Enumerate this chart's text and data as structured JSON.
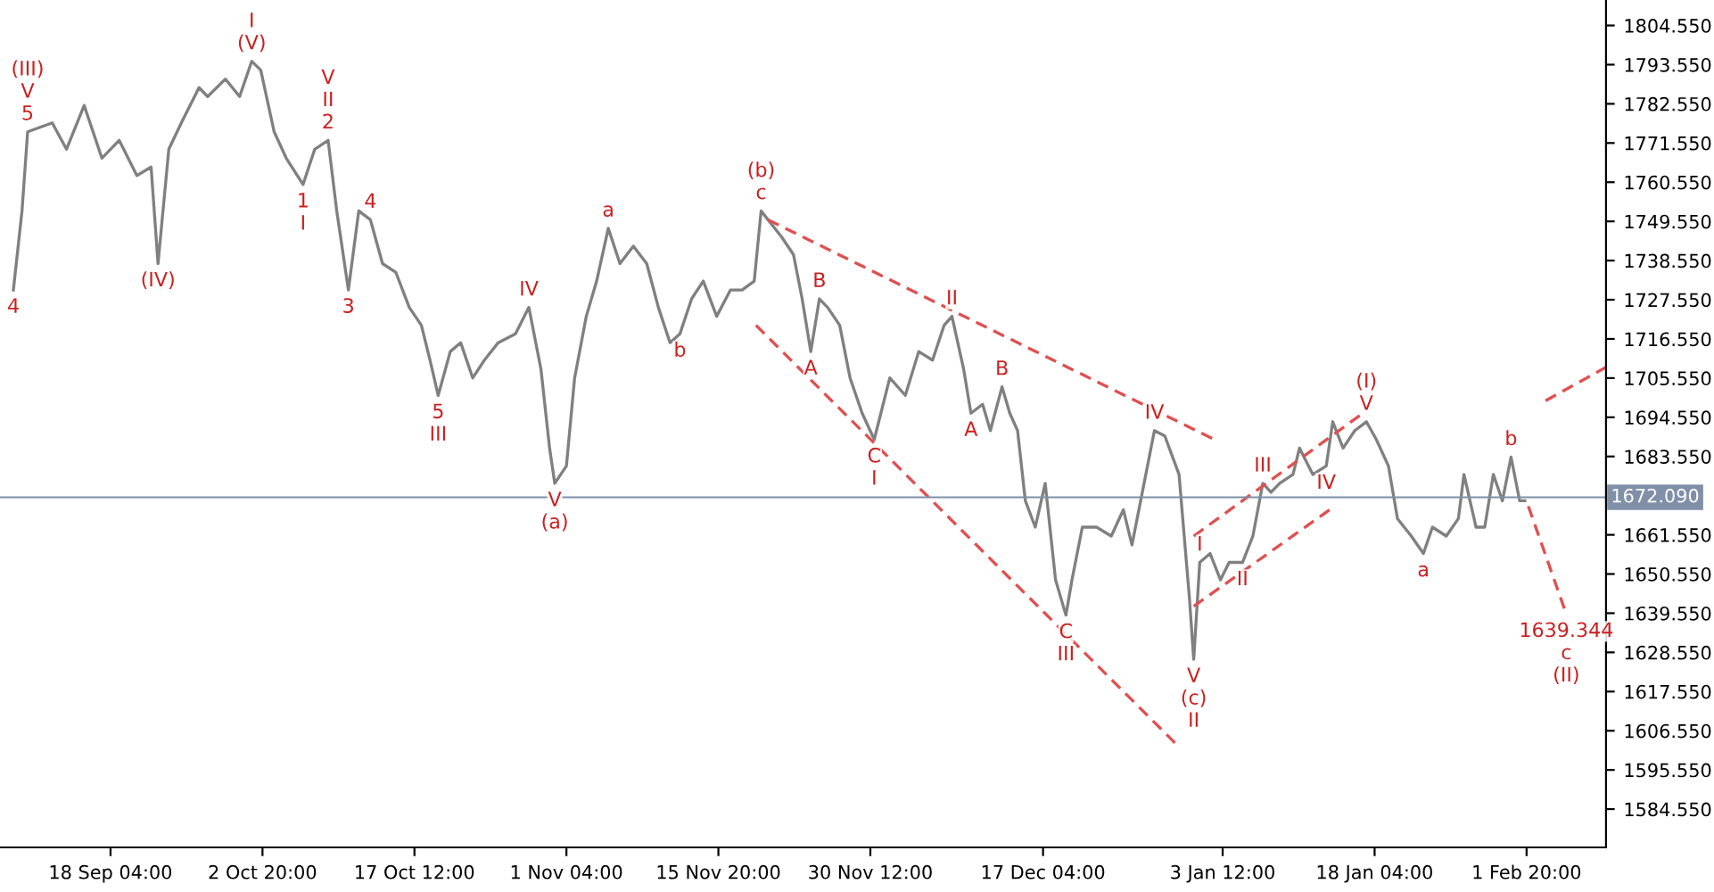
{
  "chart_data": {
    "type": "line",
    "series": [
      {
        "color": "#808080",
        "x": [
          "2019-09-08T19:00",
          "2019-09-09T15:00",
          "2019-09-10T04:00",
          "2019-09-12T13:00",
          "2019-09-13T22:00",
          "2019-09-15T15:00",
          "2019-09-17T08:00",
          "2019-09-19T00:00",
          "2019-09-20T17:00",
          "2019-09-22T02:00",
          "2019-09-22T18:00",
          "2019-09-23T19:00",
          "2019-09-25T00:00",
          "2019-09-26T17:00",
          "2019-09-27T13:00",
          "2019-09-29T06:00",
          "2019-09-30T15:00",
          "2019-10-01T19:00",
          "2019-10-02T16:00",
          "2019-10-03T23:00",
          "2019-10-05T03:00",
          "2019-10-06T18:00",
          "2019-10-07T21:00",
          "2019-10-09T04:00",
          "2019-10-10T00:00",
          "2019-10-11T03:00",
          "2019-10-12T03:00",
          "2019-10-13T06:00",
          "2019-10-14T10:00",
          "2019-10-15T17:00",
          "2019-10-17T00:00",
          "2019-10-18T04:00",
          "2019-10-19T00:00",
          "2019-10-19T19:00",
          "2019-10-20T23:00",
          "2019-10-21T23:00",
          "2019-10-23T03:00",
          "2019-10-24T06:00",
          "2019-10-25T14:00",
          "2019-10-27T06:00",
          "2019-10-28T13:00",
          "2019-10-29T17:00",
          "2019-10-30T13:00",
          "2019-10-31T01:00",
          "2019-11-01T04:00",
          "2019-11-01T23:00",
          "2019-11-03T02:00",
          "2019-11-04T02:00",
          "2019-11-05T05:00",
          "2019-11-06T08:00",
          "2019-11-07T15:00",
          "2019-11-08T22:00",
          "2019-11-10T01:00",
          "2019-11-11T04:00",
          "2019-11-12T03:00",
          "2019-11-13T06:00",
          "2019-11-14T09:00",
          "2019-11-15T16:00",
          "2019-11-17T00:00",
          "2019-11-18T03:00",
          "2019-11-19T07:00",
          "2019-11-19T23:00",
          "2019-11-20T15:00",
          "2019-11-21T23:00",
          "2019-11-23T02:00",
          "2019-11-23T22:00",
          "2019-11-24T18:00",
          "2019-11-25T14:00",
          "2019-11-26T09:00",
          "2019-11-27T13:00",
          "2019-11-28T13:00",
          "2019-11-29T17:00",
          "2019-11-30T21:00",
          "2019-12-02T09:00",
          "2019-12-03T21:00",
          "2019-12-05T04:00",
          "2019-12-06T12:00",
          "2019-12-07T15:00",
          "2019-12-08T09:00",
          "2019-12-09T12:00",
          "2019-12-10T05:00",
          "2019-12-11T08:00",
          "2019-12-12T02:00",
          "2019-12-13T05:00",
          "2019-12-13T23:00",
          "2019-12-14T17:00",
          "2019-12-15T11:00",
          "2019-12-16T10:00",
          "2019-12-17T09:00",
          "2019-12-18T09:00",
          "2019-12-19T09:00",
          "2019-12-19T23:00",
          "2019-12-20T23:00",
          "2019-12-22T08:00",
          "2019-12-23T18:00",
          "2019-12-24T22:00",
          "2019-12-25T18:00",
          "2019-12-26T22:00",
          "2019-12-27T22:00",
          "2019-12-28T22:00",
          "2019-12-30T07:00",
          "2019-12-31T07:00",
          "2019-12-31T17:00",
          "2020-01-01T07:00",
          "2020-01-02T07:00",
          "2020-01-03T07:00",
          "2020-01-04T03:00",
          "2020-01-05T10:00",
          "2020-01-06T10:00",
          "2020-01-07T09:00",
          "2020-01-08T04:00",
          "2020-01-09T00:00",
          "2020-01-10T07:00",
          "2020-01-10T22:00",
          "2020-01-12T05:00",
          "2020-01-13T12:00",
          "2020-01-14T03:00",
          "2020-01-15T03:00",
          "2020-01-16T06:00",
          "2020-01-17T09:00",
          "2020-01-18T08:00",
          "2020-01-19T12:00",
          "2020-01-20T09:00",
          "2020-01-21T17:00",
          "2020-01-22T21:00",
          "2020-01-23T18:00",
          "2020-01-25T02:00",
          "2020-01-26T06:00",
          "2020-01-26T19:00",
          "2020-01-27T23:00",
          "2020-01-28T19:00",
          "2020-01-29T15:00",
          "2020-01-30T12:00",
          "2020-01-31T08:00",
          "2020-02-01T04:00",
          "2020-02-01T16:00"
        ],
        "values": [
          1730.3,
          1752.5,
          1774.7,
          1777.2,
          1769.8,
          1782.1,
          1767.3,
          1772.3,
          1762.4,
          1764.8,
          1737.7,
          1769.8,
          1777.2,
          1787.1,
          1784.6,
          1789.5,
          1784.6,
          1794.5,
          1792.0,
          1774.7,
          1767.3,
          1759.9,
          1769.8,
          1772.3,
          1752.5,
          1730.3,
          1752.5,
          1750.0,
          1737.7,
          1735.2,
          1725.4,
          1720.4,
          1710.6,
          1700.7,
          1713.0,
          1715.5,
          1705.6,
          1710.6,
          1715.5,
          1718.0,
          1725.4,
          1708.1,
          1685.9,
          1676.0,
          1680.9,
          1705.6,
          1722.9,
          1732.8,
          1747.6,
          1737.7,
          1742.6,
          1737.7,
          1725.4,
          1715.5,
          1718.0,
          1727.8,
          1732.8,
          1722.9,
          1730.3,
          1730.3,
          1732.8,
          1752.5,
          1750.0,
          1745.1,
          1740.2,
          1727.8,
          1713.0,
          1727.8,
          1725.4,
          1720.4,
          1705.6,
          1695.7,
          1688.3,
          1705.6,
          1700.7,
          1713.0,
          1710.6,
          1720.4,
          1722.9,
          1708.1,
          1695.7,
          1698.2,
          1690.8,
          1703.1,
          1695.7,
          1690.8,
          1671.1,
          1663.7,
          1676.0,
          1648.9,
          1639.0,
          1648.9,
          1663.7,
          1663.7,
          1661.2,
          1668.6,
          1658.7,
          1676.0,
          1690.8,
          1689.3,
          1678.5,
          1643.9,
          1626.6,
          1653.8,
          1656.3,
          1648.9,
          1653.8,
          1653.8,
          1661.2,
          1676.0,
          1673.5,
          1676.0,
          1678.5,
          1685.9,
          1678.5,
          1680.9,
          1693.3,
          1685.9,
          1690.8,
          1693.3,
          1688.3,
          1680.9,
          1666.1,
          1661.2,
          1656.3,
          1663.7,
          1661.2,
          1666.1,
          1678.5,
          1663.7,
          1663.7,
          1678.5,
          1671.1,
          1683.4,
          1671.1,
          1671.1
        ]
      },
      {
        "color": "#e05050",
        "line_style": "dashed",
        "x": [
          "2019-11-19T11:00",
          "2019-12-30T07:00"
        ],
        "values": [
          1720.4,
          1602.0
        ]
      },
      {
        "color": "#e05050",
        "line_style": "dashed",
        "x": [
          "2019-11-20T15:00",
          "2020-01-02T17:00"
        ],
        "values": [
          1750.0,
          1688.3
        ]
      },
      {
        "color": "#e05050",
        "line_style": "dashed",
        "x": [
          "2019-12-31T17:00",
          "2020-01-17T01:00"
        ],
        "values": [
          1661.2,
          1695.7
        ]
      },
      {
        "color": "#e05050",
        "line_style": "dashed",
        "x": [
          "2019-12-31T17:00",
          "2020-01-13T20:00"
        ],
        "values": [
          1641.5,
          1668.6
        ]
      },
      {
        "color": "#e05050",
        "line_style": "dashed",
        "x": [
          "2020-02-03T16:00",
          "2020-02-09T12:00"
        ],
        "values": [
          1699.2,
          1708.6
        ]
      },
      {
        "color": "#e05050",
        "line_style": "dashed",
        "x": [
          "2020-02-02T00:00",
          "2020-02-05T16:00"
        ],
        "values": [
          1669.6,
          1639.3
        ]
      }
    ],
    "xlim": [
      "2019-09-07T12:00",
      "2020-02-09T12:00"
    ],
    "xticks": [
      {
        "value": "2019-09-18T04:00",
        "label": "18 Sep 04:00"
      },
      {
        "value": "2019-10-02T20:00",
        "label": "2 Oct 20:00"
      },
      {
        "value": "2019-10-17T12:00",
        "label": "17 Oct 12:00"
      },
      {
        "value": "2019-11-01T04:00",
        "label": "1 Nov 04:00"
      },
      {
        "value": "2019-11-15T20:00",
        "label": "15 Nov 20:00"
      },
      {
        "value": "2019-11-30T12:00",
        "label": "30 Nov 12:00"
      },
      {
        "value": "2019-12-17T04:00",
        "label": "17 Dec 04:00"
      },
      {
        "value": "2020-01-03T12:00",
        "label": "3 Jan 12:00"
      },
      {
        "value": "2020-01-18T04:00",
        "label": "18 Jan 04:00"
      },
      {
        "value": "2020-02-01T20:00",
        "label": "1 Feb 20:00"
      }
    ],
    "ylim": [
      1573.8,
      1811.7
    ],
    "yticks": [
      {
        "value": 1584.55,
        "label": "1584.550"
      },
      {
        "value": 1595.55,
        "label": "1595.550"
      },
      {
        "value": 1606.55,
        "label": "1606.550"
      },
      {
        "value": 1617.55,
        "label": "1617.550"
      },
      {
        "value": 1628.55,
        "label": "1628.550"
      },
      {
        "value": 1639.55,
        "label": "1639.550"
      },
      {
        "value": 1650.55,
        "label": "1650.550"
      },
      {
        "value": 1661.55,
        "label": "1661.550"
      },
      {
        "value": 1683.55,
        "label": "1683.550"
      },
      {
        "value": 1694.55,
        "label": "1694.550"
      },
      {
        "value": 1705.55,
        "label": "1705.550"
      },
      {
        "value": 1716.55,
        "label": "1716.550"
      },
      {
        "value": 1727.55,
        "label": "1727.550"
      },
      {
        "value": 1738.55,
        "label": "1738.550"
      },
      {
        "value": 1749.55,
        "label": "1749.550"
      },
      {
        "value": 1760.55,
        "label": "1760.550"
      },
      {
        "value": 1771.55,
        "label": "1771.550"
      },
      {
        "value": 1782.55,
        "label": "1782.550"
      },
      {
        "value": 1793.55,
        "label": "1793.550"
      },
      {
        "value": 1804.55,
        "label": "1804.550"
      }
    ],
    "ref_lines": [
      {
        "axis": "y",
        "value": 1672.09,
        "label": "1672.090",
        "color": "#8090a8"
      }
    ],
    "grid": false,
    "annotations": [
      {
        "text": "5",
        "x": "2019-09-10T04:00",
        "y": 1774.7
      },
      {
        "text": "V",
        "x": "2019-09-10T04:00",
        "y": 1774.7
      },
      {
        "text": "(III)",
        "x": "2019-09-10T04:00",
        "y": 1774.7
      },
      {
        "text": "4",
        "x": "2019-09-08T19:00",
        "y": 1730.3
      },
      {
        "text": "(V)",
        "x": "2019-10-01T19:00",
        "y": 1794.5
      },
      {
        "text": "I",
        "x": "2019-10-01T19:00",
        "y": 1794.5
      },
      {
        "text": "2",
        "x": "2019-10-09T04:00",
        "y": 1772.3
      },
      {
        "text": "II",
        "x": "2019-10-09T04:00",
        "y": 1772.3
      },
      {
        "text": "V",
        "x": "2019-10-09T04:00",
        "y": 1772.3
      },
      {
        "text": "1",
        "x": "2019-10-06T18:00",
        "y": 1759.9
      },
      {
        "text": "I",
        "x": "2019-10-06T18:00",
        "y": 1759.9
      },
      {
        "text": "4",
        "x": "2019-10-13T06:00",
        "y": 1750.0
      },
      {
        "text": "3",
        "x": "2019-10-11T03:00",
        "y": 1730.3
      },
      {
        "text": "(IV)",
        "x": "2019-09-22T18:00",
        "y": 1737.7
      },
      {
        "text": "5",
        "x": "2019-10-19T19:00",
        "y": 1700.7
      },
      {
        "text": "III",
        "x": "2019-10-19T19:00",
        "y": 1700.7
      },
      {
        "text": "IV",
        "x": "2019-10-28T13:00",
        "y": 1725.4
      },
      {
        "text": "V",
        "x": "2019-10-31T01:00",
        "y": 1676.0
      },
      {
        "text": "(a)",
        "x": "2019-10-31T01:00",
        "y": 1676.0
      },
      {
        "text": "a",
        "x": "2019-11-05T05:00",
        "y": 1747.6
      },
      {
        "text": "b",
        "x": "2019-11-12T03:00",
        "y": 1718.0
      },
      {
        "text": "c",
        "x": "2019-11-19T23:00",
        "y": 1752.5
      },
      {
        "text": "(b)",
        "x": "2019-11-19T23:00",
        "y": 1752.5
      },
      {
        "text": "B",
        "x": "2019-11-25T14:00",
        "y": 1727.8
      },
      {
        "text": "A",
        "x": "2019-11-24T18:00",
        "y": 1713.0
      },
      {
        "text": "C",
        "x": "2019-11-30T21:00",
        "y": 1688.3
      },
      {
        "text": "I",
        "x": "2019-11-30T21:00",
        "y": 1688.3
      },
      {
        "text": "II",
        "x": "2019-12-08T09:00",
        "y": 1722.9
      },
      {
        "text": "B",
        "x": "2019-12-13T05:00",
        "y": 1703.1
      },
      {
        "text": "A",
        "x": "2019-12-10T05:00",
        "y": 1695.7
      },
      {
        "text": "IV",
        "x": "2019-12-27T22:00",
        "y": 1690.8
      },
      {
        "text": "C",
        "x": "2019-12-19T09:00",
        "y": 1639.0
      },
      {
        "text": "III",
        "x": "2019-12-19T09:00",
        "y": 1639.0
      },
      {
        "text": "V",
        "x": "2019-12-31T17:00",
        "y": 1626.6
      },
      {
        "text": "(c)",
        "x": "2019-12-31T17:00",
        "y": 1626.6
      },
      {
        "text": "II",
        "x": "2019-12-31T17:00",
        "y": 1626.6
      },
      {
        "text": "I",
        "x": "2020-01-01T07:00",
        "y": 1653.8
      },
      {
        "text": "III",
        "x": "2020-01-07T09:00",
        "y": 1676.0
      },
      {
        "text": "II",
        "x": "2020-01-05T10:00",
        "y": 1653.8
      },
      {
        "text": "IV",
        "x": "2020-01-13T12:00",
        "y": 1680.9
      },
      {
        "text": "V",
        "x": "2020-01-17T09:00",
        "y": 1693.3
      },
      {
        "text": "(I)",
        "x": "2020-01-17T09:00",
        "y": 1693.3
      },
      {
        "text": "a",
        "x": "2020-01-22T21:00",
        "y": 1656.3
      },
      {
        "text": "b",
        "x": "2020-01-31T08:00",
        "y": 1683.4
      },
      {
        "text": "1639.344",
        "x": "2020-02-05T16:00",
        "y": 1639.3
      },
      {
        "text": "c",
        "x": "2020-02-05T16:00",
        "y": 1639.3
      },
      {
        "text": "(II)",
        "x": "2020-02-05T16:00",
        "y": 1639.3
      }
    ]
  }
}
